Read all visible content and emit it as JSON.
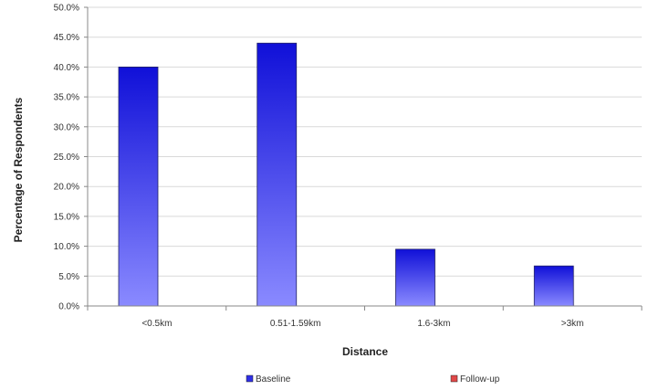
{
  "chart_data": {
    "type": "bar",
    "title": "",
    "xlabel": "Distance",
    "ylabel": "Percentage of Respondents",
    "categories": [
      "<0.5km",
      "0.51-1.59km",
      "1.6-3km",
      ">3km"
    ],
    "series": [
      {
        "name": "Baseline",
        "values": [
          40.0,
          44.0,
          9.5,
          6.7
        ],
        "color": "#2f2fe6"
      },
      {
        "name": "Follow-up",
        "values": [
          0,
          0,
          0,
          0
        ],
        "color": "#e04848"
      }
    ],
    "ylim": [
      0,
      50
    ],
    "yticks": [
      "0.0%",
      "5.0%",
      "10.0%",
      "15.0%",
      "20.0%",
      "25.0%",
      "30.0%",
      "35.0%",
      "40.0%",
      "45.0%",
      "50.0%"
    ],
    "grid": true,
    "legend_position": "bottom"
  }
}
